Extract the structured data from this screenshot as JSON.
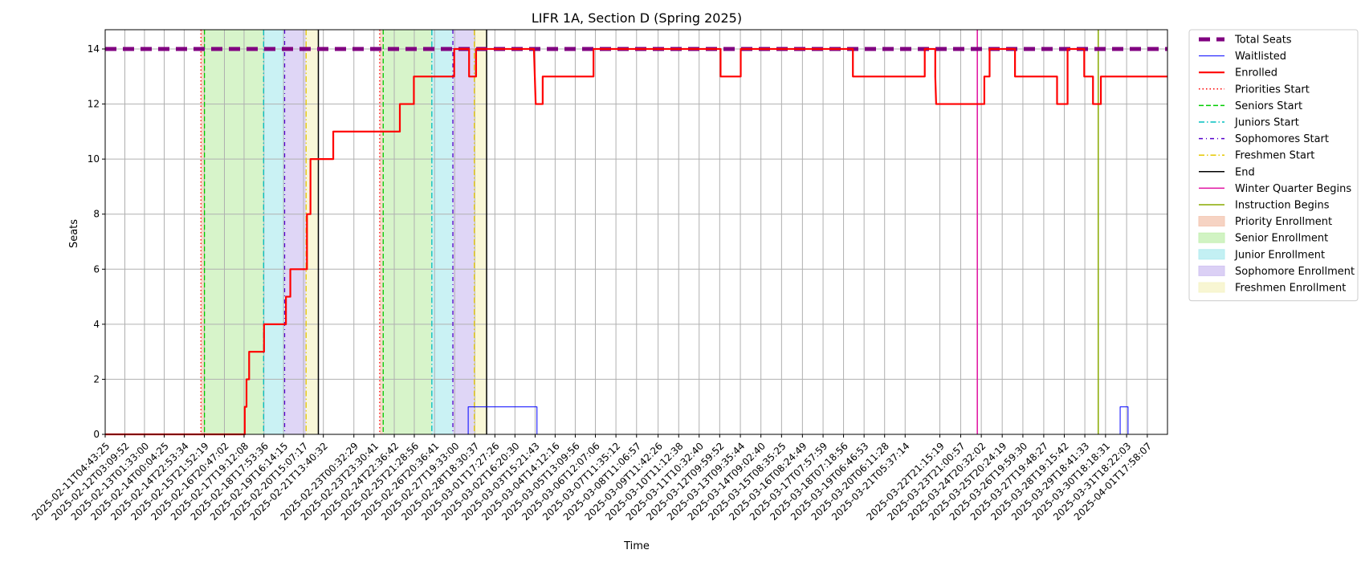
{
  "chart_data": {
    "type": "line",
    "title": "LIFR 1A, Section D (Spring 2025)",
    "xlabel": "Time",
    "ylabel": "Seats",
    "ylim": [
      0,
      14.7
    ],
    "yticks": [
      0,
      2,
      4,
      6,
      8,
      10,
      12,
      14
    ],
    "grid": true,
    "legend_position": "outside-right",
    "xlim": [
      "2025-02-11T04:43:25",
      "2025-04-02T17:00:00"
    ],
    "xtick_labels": [
      "2025-02-11T04:43:25",
      "2025-02-12T03:09:52",
      "2025-02-13T01:33:00",
      "2025-02-14T00:04:25",
      "2025-02-14T22:53:34",
      "2025-02-15T21:52:19",
      "2025-02-16T20:47:02",
      "2025-02-17T19:12:08",
      "2025-02-18T17:53:36",
      "2025-02-19T16:14:15",
      "2025-02-20T15:07:17",
      "2025-02-21T13:40:32",
      "2025-02-23T00:32:29",
      "2025-02-23T23:30:41",
      "2025-02-24T22:36:42",
      "2025-02-25T21:28:56",
      "2025-02-26T20:36:41",
      "2025-02-27T19:33:00",
      "2025-02-28T18:30:37",
      "2025-03-01T17:27:26",
      "2025-03-02T16:20:30",
      "2025-03-03T15:21:43",
      "2025-03-04T14:12:16",
      "2025-03-05T13:09:56",
      "2025-03-06T12:07:06",
      "2025-03-07T11:35:12",
      "2025-03-08T11:06:57",
      "2025-03-09T11:42:26",
      "2025-03-10T11:12:38",
      "2025-03-11T10:32:40",
      "2025-03-12T09:59:52",
      "2025-03-13T09:35:44",
      "2025-03-14T09:02:40",
      "2025-03-15T08:35:25",
      "2025-03-16T08:24:49",
      "2025-03-17T07:57:59",
      "2025-03-18T07:18:56",
      "2025-03-19T06:46:53",
      "2025-03-20T06:11:28",
      "2025-03-21T05:37:14",
      "2025-03-22T21:15:19",
      "2025-03-23T21:00:57",
      "2025-03-24T20:32:02",
      "2025-03-25T20:24:19",
      "2025-03-26T19:59:30",
      "2025-03-27T19:48:27",
      "2025-03-28T19:15:42",
      "2025-03-29T18:41:33",
      "2025-03-30T18:18:31",
      "2025-03-31T18:22:03",
      "2025-04-01T17:58:07"
    ],
    "series": [
      {
        "name": "Total Seats",
        "color": "#800080",
        "style": "dashed-thick",
        "points": [
          [
            "2025-02-11T04:43:25",
            14
          ],
          [
            "2025-04-02T17:00:00",
            14
          ]
        ]
      },
      {
        "name": "Waitlisted",
        "color": "#0000ff",
        "style": "solid-thin",
        "points": [
          [
            "2025-02-11T04:43:25",
            0
          ],
          [
            "2025-02-28T11:00:00",
            0
          ],
          [
            "2025-02-28T11:00:00",
            1
          ],
          [
            "2025-03-03T17:30:00",
            1
          ],
          [
            "2025-03-03T17:30:00",
            0
          ],
          [
            "2025-03-31T11:00:00",
            0
          ],
          [
            "2025-03-31T11:00:00",
            1
          ],
          [
            "2025-03-31T20:00:00",
            1
          ],
          [
            "2025-03-31T20:00:00",
            0
          ],
          [
            "2025-04-02T17:00:00",
            0
          ]
        ]
      },
      {
        "name": "Enrolled",
        "color": "#ff0000",
        "style": "solid-thick",
        "points": [
          [
            "2025-02-11T04:43:25",
            0
          ],
          [
            "2025-02-17T20:00:00",
            0
          ],
          [
            "2025-02-17T20:00:00",
            1
          ],
          [
            "2025-02-17T22:00:00",
            1
          ],
          [
            "2025-02-17T22:00:00",
            2
          ],
          [
            "2025-02-18T01:00:00",
            2
          ],
          [
            "2025-02-18T01:00:00",
            3
          ],
          [
            "2025-02-18T18:00:00",
            3
          ],
          [
            "2025-02-18T18:00:00",
            4
          ],
          [
            "2025-02-19T19:00:00",
            4
          ],
          [
            "2025-02-19T19:00:00",
            5
          ],
          [
            "2025-02-20T00:00:00",
            5
          ],
          [
            "2025-02-20T00:00:00",
            6
          ],
          [
            "2025-02-20T19:00:00",
            6
          ],
          [
            "2025-02-20T19:00:00",
            8
          ],
          [
            "2025-02-20T23:00:00",
            8
          ],
          [
            "2025-02-20T23:00:00",
            10
          ],
          [
            "2025-02-22T01:00:00",
            10
          ],
          [
            "2025-02-22T01:00:00",
            11
          ],
          [
            "2025-02-25T05:00:00",
            11
          ],
          [
            "2025-02-25T05:00:00",
            12
          ],
          [
            "2025-02-25T21:00:00",
            12
          ],
          [
            "2025-02-25T21:00:00",
            13
          ],
          [
            "2025-02-27T19:00:00",
            13
          ],
          [
            "2025-02-27T19:00:00",
            14
          ],
          [
            "2025-02-28T12:00:00",
            14
          ],
          [
            "2025-02-28T12:00:00",
            13
          ],
          [
            "2025-02-28T20:00:00",
            13
          ],
          [
            "2025-02-28T20:00:00",
            14
          ],
          [
            "2025-03-03T14:00:00",
            14
          ],
          [
            "2025-03-03T15:00:00",
            13
          ],
          [
            "2025-03-03T16:00:00",
            12
          ],
          [
            "2025-03-04T00:00:00",
            12
          ],
          [
            "2025-03-04T00:00:00",
            13
          ],
          [
            "2025-03-06T10:00:00",
            13
          ],
          [
            "2025-03-06T10:00:00",
            14
          ],
          [
            "2025-03-12T11:00:00",
            14
          ],
          [
            "2025-03-12T11:00:00",
            13
          ],
          [
            "2025-03-13T10:00:00",
            13
          ],
          [
            "2025-03-13T10:00:00",
            14
          ],
          [
            "2025-03-18T18:00:00",
            14
          ],
          [
            "2025-03-18T18:00:00",
            13
          ],
          [
            "2025-03-22T04:00:00",
            13
          ],
          [
            "2025-03-22T04:00:00",
            14
          ],
          [
            "2025-03-22T16:00:00",
            14
          ],
          [
            "2025-03-22T16:00:00",
            13
          ],
          [
            "2025-03-22T17:00:00",
            12
          ],
          [
            "2025-03-25T00:00:00",
            12
          ],
          [
            "2025-03-25T00:00:00",
            13
          ],
          [
            "2025-03-25T06:00:00",
            13
          ],
          [
            "2025-03-25T06:00:00",
            14
          ],
          [
            "2025-03-26T11:00:00",
            14
          ],
          [
            "2025-03-26T11:00:00",
            13
          ],
          [
            "2025-03-28T11:00:00",
            13
          ],
          [
            "2025-03-28T11:00:00",
            12
          ],
          [
            "2025-03-28T23:00:00",
            12
          ],
          [
            "2025-03-28T23:00:00",
            14
          ],
          [
            "2025-03-29T18:00:00",
            14
          ],
          [
            "2025-03-29T18:00:00",
            13
          ],
          [
            "2025-03-30T04:00:00",
            13
          ],
          [
            "2025-03-30T04:00:00",
            12
          ],
          [
            "2025-03-30T13:00:00",
            12
          ],
          [
            "2025-03-30T13:00:00",
            13
          ],
          [
            "2025-04-02T17:00:00",
            13
          ]
        ]
      }
    ],
    "vlines": [
      {
        "name": "Priorities Start",
        "color": "#ff0000",
        "dash": "dotted",
        "times": [
          "2025-02-15T18:00:00",
          "2025-02-24T06:00:00"
        ]
      },
      {
        "name": "Seniors Start",
        "color": "#00cc00",
        "dash": "dashed",
        "times": [
          "2025-02-15T22:00:00",
          "2025-02-24T10:00:00"
        ]
      },
      {
        "name": "Juniors Start",
        "color": "#00bfbf",
        "dash": "dashdot",
        "times": [
          "2025-02-18T17:30:00",
          "2025-02-26T17:30:00"
        ]
      },
      {
        "name": "Sophomores Start",
        "color": "#5500cc",
        "dash": "dashdot-fine",
        "times": [
          "2025-02-19T17:30:00",
          "2025-02-27T17:30:00"
        ]
      },
      {
        "name": "Freshmen Start",
        "color": "#e6c800",
        "dash": "dashdot",
        "times": [
          "2025-02-20T18:00:00",
          "2025-02-28T18:00:00"
        ]
      },
      {
        "name": "End",
        "color": "#000000",
        "dash": "solid",
        "times": [
          "2025-02-21T08:00:00",
          "2025-03-01T08:00:00"
        ]
      },
      {
        "name": "Winter Quarter Begins",
        "color": "#e010a0",
        "dash": "solid",
        "times": [
          "2025-03-24T16:00:00"
        ]
      },
      {
        "name": "Instruction Begins",
        "color": "#88aa00",
        "dash": "solid",
        "times": [
          "2025-03-30T10:00:00"
        ]
      }
    ],
    "spans": [
      {
        "name": "Priority Enrollment",
        "color": "#f4c8b4",
        "ranges": [
          [
            "2025-02-15T18:00:00",
            "2025-02-15T22:00:00"
          ],
          [
            "2025-02-24T06:00:00",
            "2025-02-24T10:00:00"
          ]
        ]
      },
      {
        "name": "Senior Enrollment",
        "color": "#c6f0b4",
        "ranges": [
          [
            "2025-02-15T22:00:00",
            "2025-02-18T17:30:00"
          ],
          [
            "2025-02-24T10:00:00",
            "2025-02-26T17:30:00"
          ]
        ]
      },
      {
        "name": "Junior Enrollment",
        "color": "#b4ecf0",
        "ranges": [
          [
            "2025-02-18T17:30:00",
            "2025-02-19T17:30:00"
          ],
          [
            "2025-02-26T17:30:00",
            "2025-02-27T17:30:00"
          ]
        ]
      },
      {
        "name": "Sophomore Enrollment",
        "color": "#d2c4f2",
        "ranges": [
          [
            "2025-02-19T17:30:00",
            "2025-02-20T18:00:00"
          ],
          [
            "2025-02-27T17:30:00",
            "2025-02-28T18:00:00"
          ]
        ]
      },
      {
        "name": "Freshmen Enrollment",
        "color": "#f6f4c8",
        "ranges": [
          [
            "2025-02-20T18:00:00",
            "2025-02-21T08:00:00"
          ],
          [
            "2025-02-28T18:00:00",
            "2025-03-01T08:00:00"
          ]
        ]
      }
    ]
  }
}
